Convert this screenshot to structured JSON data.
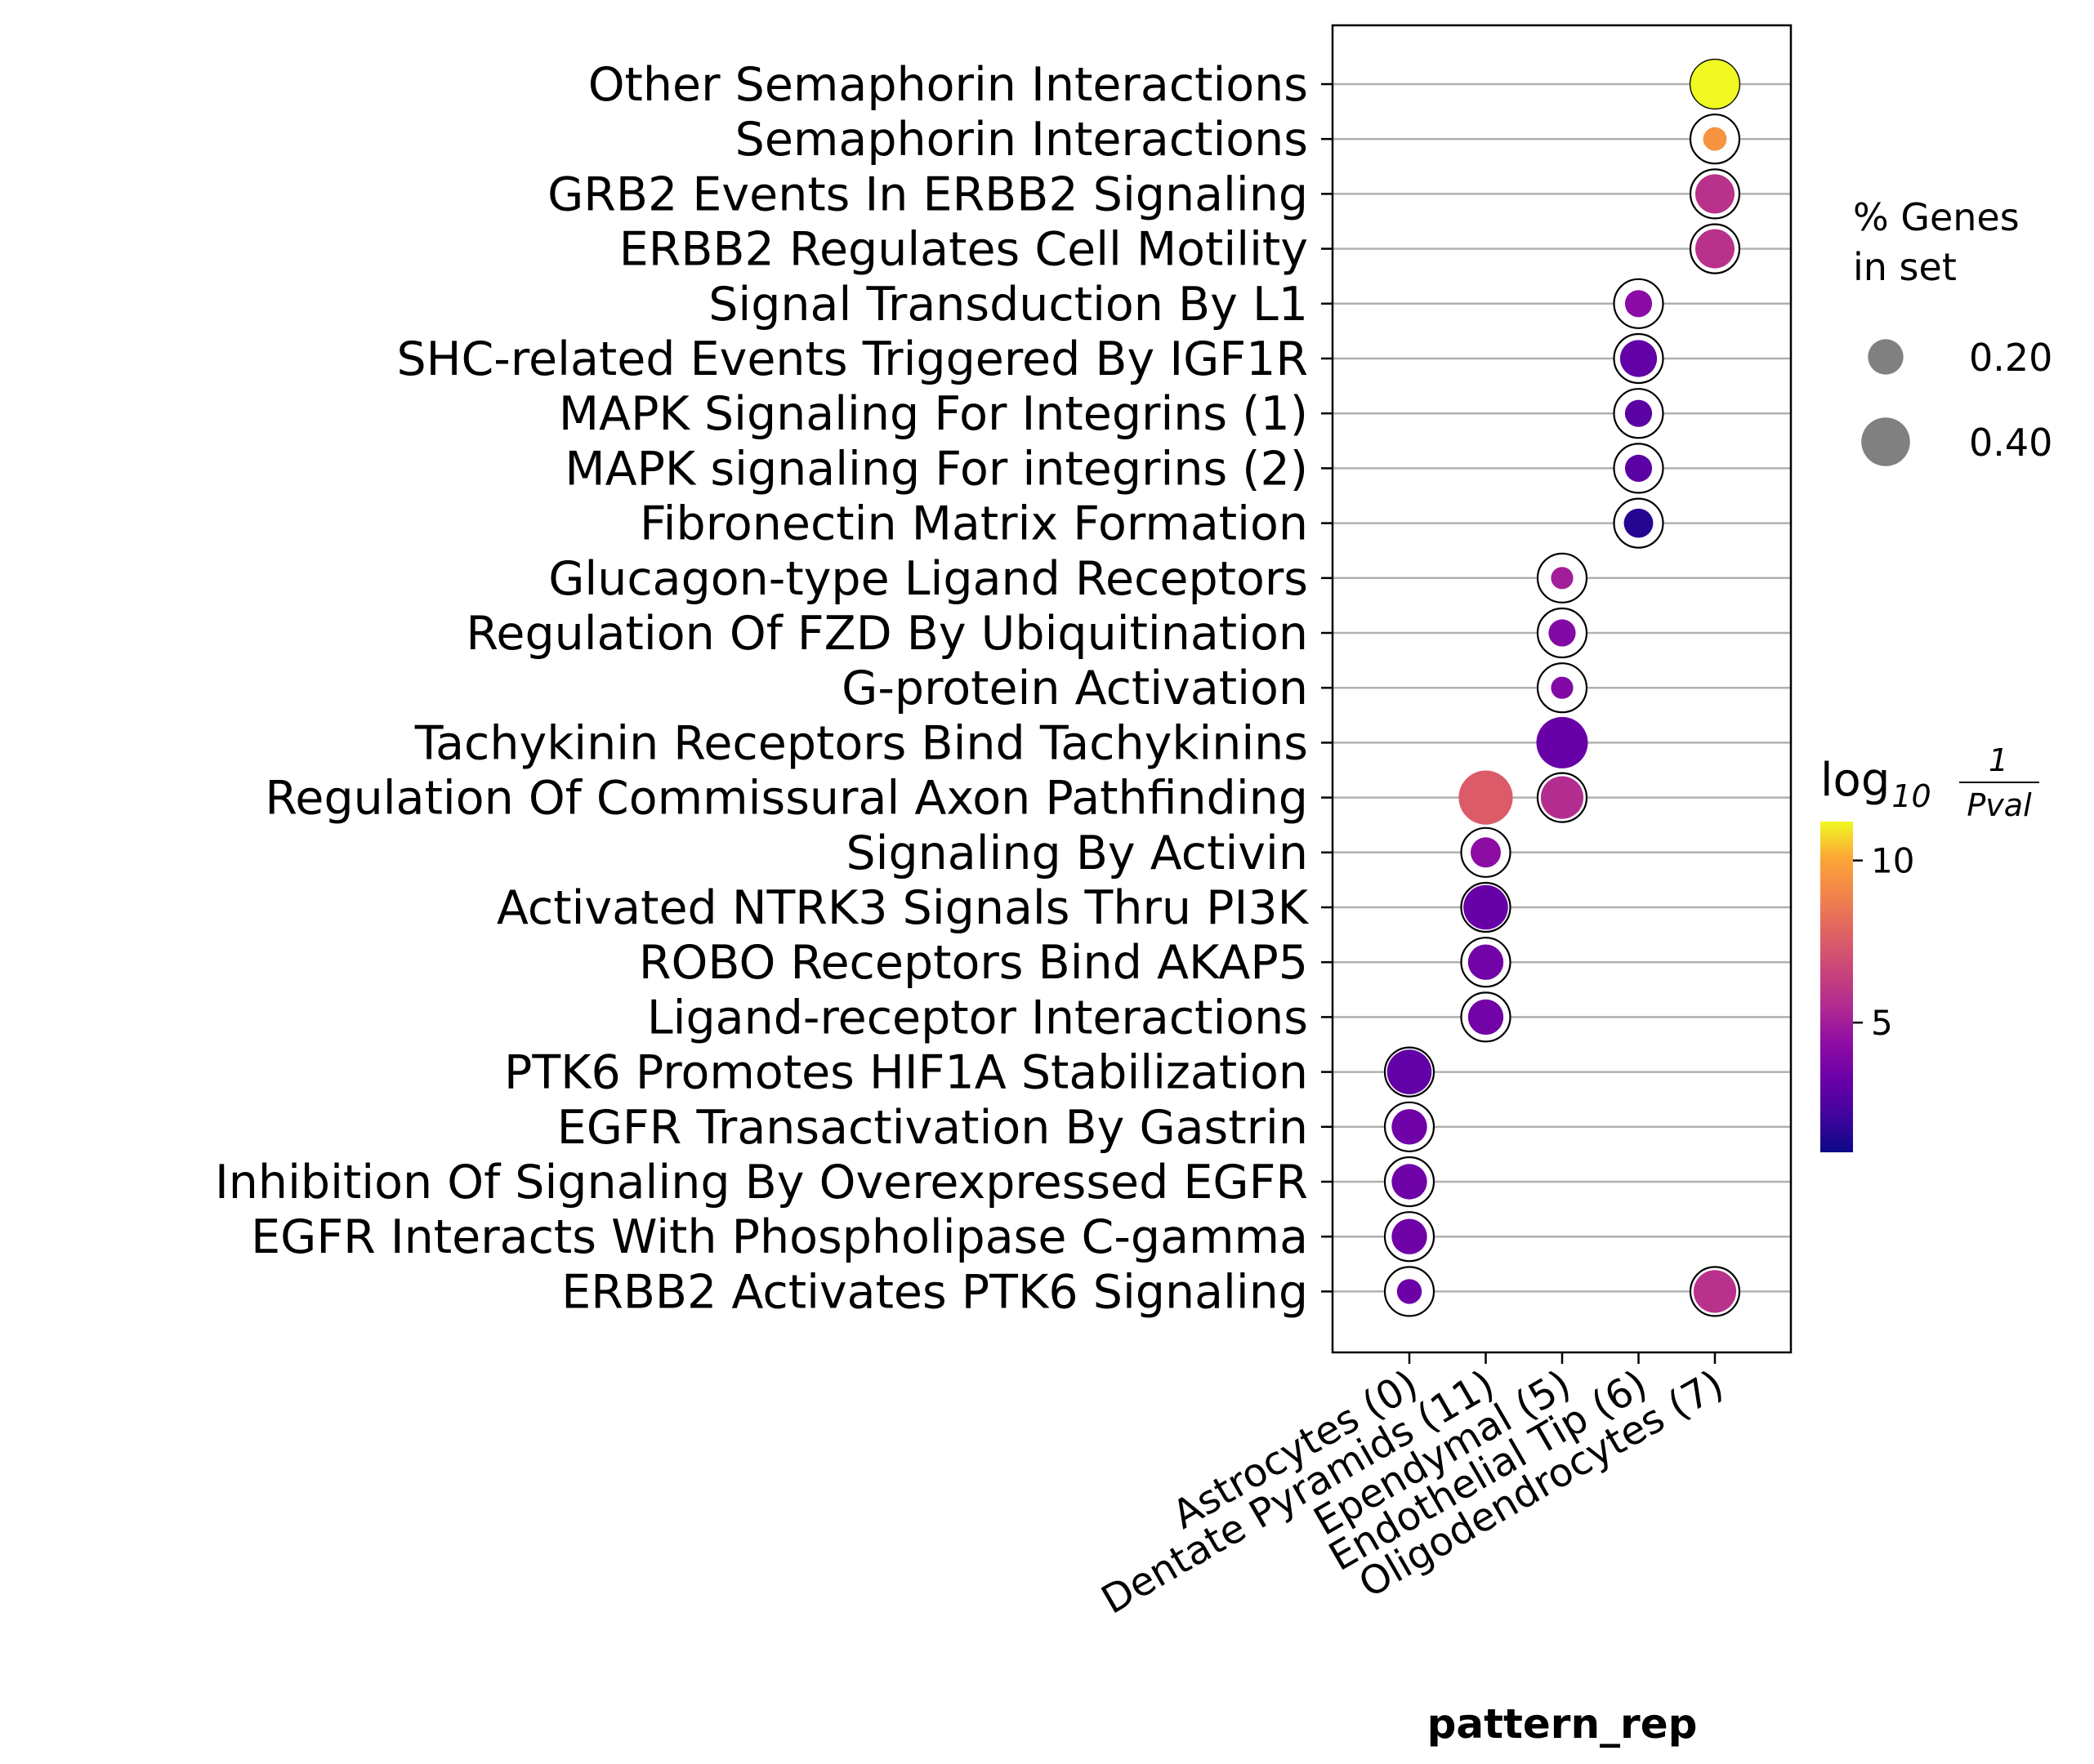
{
  "chart_data": {
    "type": "scatter",
    "subtype": "dot-plot",
    "xlabel": "pattern_rep",
    "categories_x": [
      "Astrocytes (0)",
      "Dentate Pyramids (11)",
      "Ependymal (5)",
      "Endothelial Tip (6)",
      "Oligodendrocytes (7)"
    ],
    "categories_y": [
      "Other Semaphorin Interactions",
      "Semaphorin Interactions",
      "GRB2 Events In ERBB2 Signaling",
      "ERBB2 Regulates Cell Motility",
      "Signal Transduction By L1",
      "SHC-related Events Triggered By IGF1R",
      "MAPK Signaling For Integrins (1)",
      "MAPK signaling For integrins (2)",
      "Fibronectin Matrix Formation",
      "Glucagon-type Ligand Receptors",
      "Regulation Of FZD By Ubiquitination",
      "G-protein Activation",
      "Tachykinin Receptors Bind Tachykinins",
      "Regulation Of Commissural Axon Pathfinding",
      "Signaling By Activin",
      "Activated NTRK3 Signals Thru PI3K",
      "ROBO Receptors Bind AKAP5",
      "Ligand-receptor Interactions",
      "PTK6 Promotes HIF1A Stabilization",
      "EGFR Transactivation By Gastrin",
      "Inhibition Of Signaling By Overexpressed EGFR",
      "EGFR Interacts With Phospholipase C-gamma",
      "ERBB2 Activates PTK6 Signaling"
    ],
    "points": [
      {
        "x": "Oligodendrocytes (7)",
        "y": "Other Semaphorin Interactions",
        "pct_genes": 0.4,
        "log10_inv_pval": 11.2
      },
      {
        "x": "Oligodendrocytes (7)",
        "y": "Semaphorin Interactions",
        "pct_genes": 0.08,
        "log10_inv_pval": 9.5
      },
      {
        "x": "Oligodendrocytes (7)",
        "y": "GRB2 Events In ERBB2 Signaling",
        "pct_genes": 0.25,
        "log10_inv_pval": 5.8
      },
      {
        "x": "Oligodendrocytes (7)",
        "y": "ERBB2 Regulates Cell Motility",
        "pct_genes": 0.25,
        "log10_inv_pval": 5.8
      },
      {
        "x": "Endothelial Tip (6)",
        "y": "Signal Transduction By L1",
        "pct_genes": 0.11,
        "log10_inv_pval": 4.2
      },
      {
        "x": "Endothelial Tip (6)",
        "y": "SHC-related Events Triggered By IGF1R",
        "pct_genes": 0.22,
        "log10_inv_pval": 3.0
      },
      {
        "x": "Endothelial Tip (6)",
        "y": "MAPK Signaling For Integrins (1)",
        "pct_genes": 0.11,
        "log10_inv_pval": 2.8
      },
      {
        "x": "Endothelial Tip (6)",
        "y": "MAPK signaling For integrins (2)",
        "pct_genes": 0.11,
        "log10_inv_pval": 2.8
      },
      {
        "x": "Endothelial Tip (6)",
        "y": "Fibronectin Matrix Formation",
        "pct_genes": 0.13,
        "log10_inv_pval": 1.5
      },
      {
        "x": "Ependymal (5)",
        "y": "Glucagon-type Ligand Receptors",
        "pct_genes": 0.07,
        "log10_inv_pval": 5.0
      },
      {
        "x": "Ependymal (5)",
        "y": "Regulation Of FZD By Ubiquitination",
        "pct_genes": 0.11,
        "log10_inv_pval": 4.0
      },
      {
        "x": "Ependymal (5)",
        "y": "G-protein Activation",
        "pct_genes": 0.07,
        "log10_inv_pval": 4.0
      },
      {
        "x": "Ependymal (5)",
        "y": "Tachykinin Receptors Bind Tachykinins",
        "pct_genes": 0.45,
        "log10_inv_pval": 3.2
      },
      {
        "x": "Ependymal (5)",
        "y": "Regulation Of Commissural Axon Pathfinding",
        "pct_genes": 0.3,
        "log10_inv_pval": 5.6
      },
      {
        "x": "Dentate Pyramids (11)",
        "y": "Regulation Of Commissural Axon Pathfinding",
        "pct_genes": 0.5,
        "log10_inv_pval": 7.5
      },
      {
        "x": "Dentate Pyramids (11)",
        "y": "Signaling By Activin",
        "pct_genes": 0.14,
        "log10_inv_pval": 4.3
      },
      {
        "x": "Dentate Pyramids (11)",
        "y": "Activated NTRK3 Signals Thru PI3K",
        "pct_genes": 0.33,
        "log10_inv_pval": 3.2
      },
      {
        "x": "Dentate Pyramids (11)",
        "y": "ROBO Receptors Bind AKAP5",
        "pct_genes": 0.2,
        "log10_inv_pval": 3.5
      },
      {
        "x": "Dentate Pyramids (11)",
        "y": "Ligand-receptor Interactions",
        "pct_genes": 0.2,
        "log10_inv_pval": 3.5
      },
      {
        "x": "Astrocytes (0)",
        "y": "PTK6 Promotes HIF1A Stabilization",
        "pct_genes": 0.33,
        "log10_inv_pval": 3.0
      },
      {
        "x": "Astrocytes (0)",
        "y": "EGFR Transactivation By Gastrin",
        "pct_genes": 0.2,
        "log10_inv_pval": 3.4
      },
      {
        "x": "Astrocytes (0)",
        "y": "Inhibition Of Signaling By Overexpressed EGFR",
        "pct_genes": 0.2,
        "log10_inv_pval": 3.4
      },
      {
        "x": "Astrocytes (0)",
        "y": "EGFR Interacts With Phospholipase C-gamma",
        "pct_genes": 0.2,
        "log10_inv_pval": 3.4
      },
      {
        "x": "Astrocytes (0)",
        "y": "ERBB2 Activates PTK6 Signaling",
        "pct_genes": 0.09,
        "log10_inv_pval": 3.3
      },
      {
        "x": "Oligodendrocytes (7)",
        "y": "ERBB2 Activates PTK6 Signaling",
        "pct_genes": 0.3,
        "log10_inv_pval": 5.8
      }
    ],
    "size_legend": {
      "title_line1": "% Genes",
      "title_line2": "in set",
      "entries": [
        {
          "value": 0.2,
          "label": "0.20"
        },
        {
          "value": 0.4,
          "label": "0.40"
        }
      ]
    },
    "colorbar": {
      "title_main": "log",
      "title_sub": "10",
      "title_num": "1",
      "title_den": "Pval",
      "colormap": "plasma",
      "range": [
        1,
        11.2
      ],
      "ticks": [
        5,
        10
      ],
      "tick_labels": [
        "5",
        "10"
      ]
    },
    "grid": "horizontal",
    "legend_position": "right"
  }
}
